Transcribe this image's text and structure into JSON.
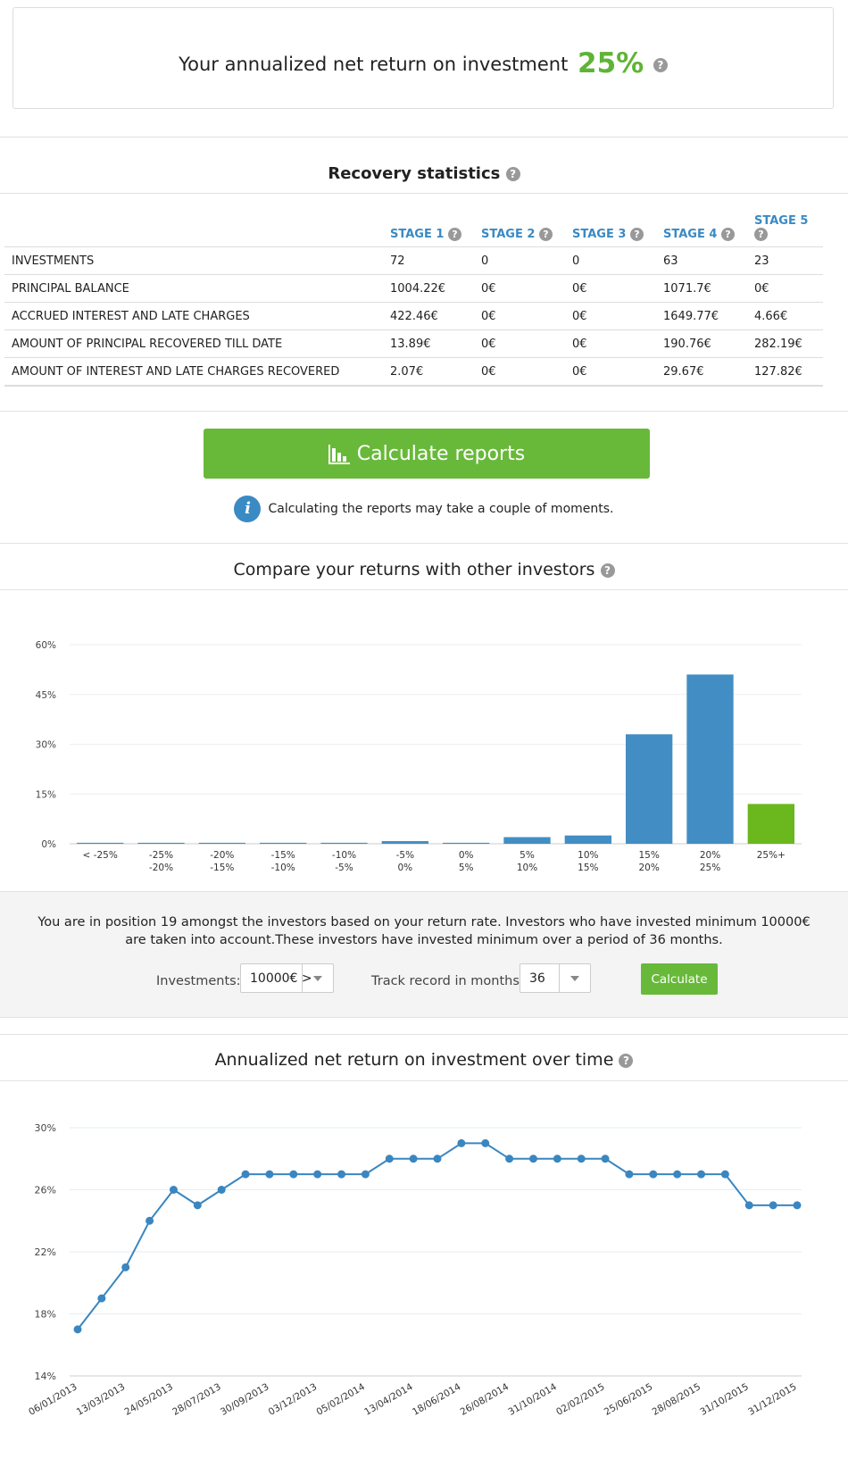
{
  "roi": {
    "label": "Your annualized net return on investment",
    "value": "25%"
  },
  "recovery": {
    "title": "Recovery statistics",
    "stages": [
      "STAGE 1",
      "STAGE 2",
      "STAGE 3",
      "STAGE 4",
      "STAGE 5"
    ],
    "rows": [
      {
        "label": "INVESTMENTS",
        "values": [
          "72",
          "0",
          "0",
          "63",
          "23"
        ]
      },
      {
        "label": "PRINCIPAL BALANCE",
        "values": [
          "1004.22€",
          "0€",
          "0€",
          "1071.7€",
          "0€"
        ]
      },
      {
        "label": "ACCRUED INTEREST AND LATE CHARGES",
        "values": [
          "422.46€",
          "0€",
          "0€",
          "1649.77€",
          "4.66€"
        ]
      },
      {
        "label": "AMOUNT OF PRINCIPAL RECOVERED TILL DATE",
        "values": [
          "13.89€",
          "0€",
          "0€",
          "190.76€",
          "282.19€"
        ]
      },
      {
        "label": "AMOUNT OF INTEREST AND LATE CHARGES RECOVERED",
        "values": [
          "2.07€",
          "0€",
          "0€",
          "29.67€",
          "127.82€"
        ]
      }
    ]
  },
  "reports": {
    "button_label": "Calculate reports",
    "info": "Calculating the reports may take a couple of moments."
  },
  "compare": {
    "title": "Compare your returns with other investors",
    "position_text": "You are in position 19 amongst the investors based on your return rate. Investors who have invested minimum 10000€ are taken into account.These investors have invested minimum over a period of 36 months.",
    "investments_label": "Investments:",
    "investments_value": "10000€ >",
    "track_label": "Track record in months:",
    "track_value": "36",
    "calculate_label": "Calculate"
  },
  "over_time": {
    "title": "Annualized net return on investment over time"
  },
  "colors": {
    "accent_green": "#5fb336",
    "bar_blue": "#428ec4",
    "bar_highlight": "#6ab81e",
    "line_blue": "#3a86c0"
  },
  "chart_data": [
    {
      "type": "bar",
      "title": "Compare your returns with other investors",
      "categories": [
        [
          "< -25%"
        ],
        [
          "-25%",
          "-20%"
        ],
        [
          "-20%",
          "-15%"
        ],
        [
          "-15%",
          "-10%"
        ],
        [
          "-10%",
          "-5%"
        ],
        [
          "-5%",
          "0%"
        ],
        [
          "0%",
          "5%"
        ],
        [
          "5%",
          "10%"
        ],
        [
          "10%",
          "15%"
        ],
        [
          "15%",
          "20%"
        ],
        [
          "20%",
          "25%"
        ],
        [
          "25%+"
        ]
      ],
      "values": [
        0.3,
        0.3,
        0.3,
        0.3,
        0.3,
        0.8,
        0.3,
        2,
        2.5,
        33,
        51,
        12
      ],
      "highlight_index": 11,
      "ylim": [
        0,
        60
      ],
      "yticks": [
        0,
        15,
        30,
        45,
        60
      ],
      "ytick_labels": [
        "0%",
        "15%",
        "30%",
        "45%",
        "60%"
      ],
      "grid": true
    },
    {
      "type": "line",
      "title": "Annualized net return on investment over time",
      "x": [
        "06/01/2013",
        "",
        "13/03/2013",
        "",
        "24/05/2013",
        "",
        "28/07/2013",
        "",
        "30/09/2013",
        "",
        "03/12/2013",
        "",
        "05/02/2014",
        "",
        "13/04/2014",
        "",
        "18/06/2014",
        "",
        "26/08/2014",
        "",
        "31/10/2014",
        "",
        "02/02/2015",
        "",
        "25/06/2015",
        "",
        "28/08/2015",
        "",
        "31/10/2015",
        "",
        "31/12/2015"
      ],
      "values": [
        17,
        19,
        21,
        24,
        26,
        25,
        26,
        27,
        27,
        27,
        27,
        27,
        27,
        28,
        28,
        28,
        29,
        29,
        28,
        28,
        28,
        28,
        28,
        27,
        27,
        27,
        27,
        27,
        25,
        25,
        25
      ],
      "ylim": [
        14,
        30
      ],
      "yticks": [
        14,
        18,
        22,
        26,
        30
      ],
      "ytick_labels": [
        "14%",
        "18%",
        "22%",
        "26%",
        "30%"
      ],
      "grid": true
    }
  ]
}
